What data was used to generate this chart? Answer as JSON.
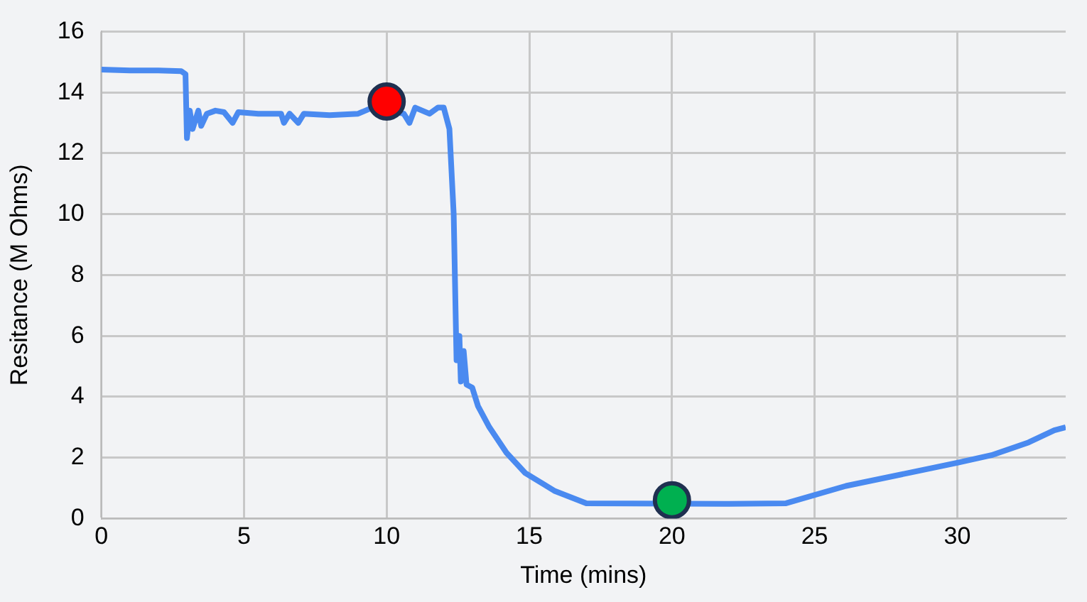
{
  "chart_data": {
    "type": "line",
    "xlabel": "Time (mins)",
    "ylabel": "Resitance (M Ohms)",
    "xlim": [
      0,
      33.8
    ],
    "xticks": [
      0,
      5,
      10,
      15,
      20,
      25,
      30
    ],
    "ylim": [
      0,
      16
    ],
    "yticks": [
      0,
      2,
      4,
      6,
      8,
      10,
      12,
      14,
      16
    ],
    "grid": true,
    "legend": false,
    "series": [
      {
        "type": "line",
        "color": "#4a8af0",
        "marker": "none",
        "x": [
          0,
          1,
          2,
          2.8,
          2.95,
          3.0,
          3.1,
          3.2,
          3.4,
          3.5,
          3.7,
          4.0,
          4.3,
          4.6,
          4.8,
          5.5,
          6.3,
          6.4,
          6.6,
          6.9,
          7.1,
          8,
          9,
          9.5,
          10.6,
          10.8,
          11,
          11.5,
          11.8,
          12.0,
          12.2,
          12.35,
          12.45,
          12.55,
          12.6,
          12.7,
          12.8,
          13.0,
          13.2,
          13.6,
          14.2,
          14.85,
          15.9,
          17,
          22,
          24,
          26.1,
          28.3,
          30,
          31.2,
          32.5,
          33.4,
          33.8
        ],
        "values": [
          14.75,
          14.72,
          14.72,
          14.7,
          14.6,
          12.5,
          13.4,
          12.8,
          13.4,
          12.9,
          13.3,
          13.4,
          13.35,
          13.0,
          13.35,
          13.3,
          13.3,
          13.0,
          13.3,
          13.0,
          13.3,
          13.25,
          13.3,
          13.5,
          13.3,
          13.0,
          13.5,
          13.3,
          13.5,
          13.5,
          12.8,
          10,
          5.2,
          6,
          4.5,
          5.5,
          4.4,
          4.3,
          3.7,
          3.0,
          2.16,
          1.5,
          0.9,
          0.5,
          0.48,
          0.5,
          1.07,
          1.5,
          1.83,
          2.08,
          2.5,
          2.9,
          3.0
        ]
      },
      {
        "type": "scatter",
        "color": "#ff0000",
        "marker": "circle",
        "x": [
          10
        ],
        "values": [
          13.7
        ]
      },
      {
        "type": "scatter",
        "color": "#00b050",
        "marker": "circle",
        "x": [
          20
        ],
        "values": [
          0.6
        ]
      }
    ]
  }
}
